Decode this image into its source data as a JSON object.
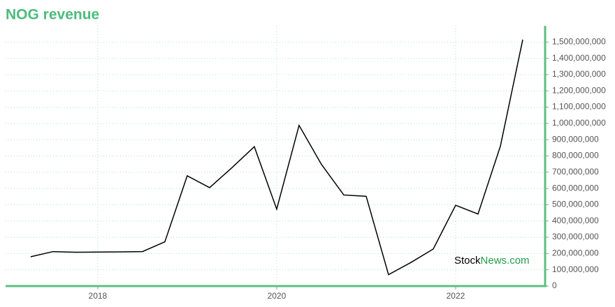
{
  "chart_data": {
    "type": "line",
    "title": "NOG revenue",
    "x": [
      2017.25,
      2017.5,
      2017.75,
      2018.0,
      2018.25,
      2018.5,
      2018.75,
      2019.0,
      2019.25,
      2019.5,
      2019.75,
      2020.0,
      2020.25,
      2020.5,
      2020.75,
      2021.0,
      2021.25,
      2021.5,
      2021.75,
      2022.0,
      2022.25,
      2022.5,
      2022.75
    ],
    "series": [
      {
        "name": "NOG revenue",
        "color": "#000000",
        "values": [
          180000000,
          212000000,
          208000000,
          209000000,
          210000000,
          212000000,
          272000000,
          678000000,
          605000000,
          728000000,
          857000000,
          473000000,
          988000000,
          748000000,
          560000000,
          552000000,
          70000000,
          145000000,
          228000000,
          497000000,
          443000000,
          860000000,
          1515000000
        ]
      }
    ],
    "xlim": [
      2016.97,
      2023.0
    ],
    "xticks": [
      2018,
      2020,
      2022
    ],
    "ylim": [
      0,
      1600000000
    ],
    "yticks": [
      0,
      {
        "value": 100000000,
        "label": "100,000,000"
      },
      {
        "value": 200000000,
        "label": "200,000,000"
      },
      {
        "value": 300000000,
        "label": "300,000,000"
      },
      {
        "value": 400000000,
        "label": "400,000,000"
      },
      {
        "value": 500000000,
        "label": "500,000,000"
      },
      {
        "value": 600000000,
        "label": "600,000,000"
      },
      {
        "value": 700000000,
        "label": "700,000,000"
      },
      {
        "value": 800000000,
        "label": "800,000,000"
      },
      {
        "value": 900000000,
        "label": "900,000,000"
      },
      {
        "value": 1000000000,
        "label": "1,000,000,000"
      },
      {
        "value": 1100000000,
        "label": "1,100,000,000"
      },
      {
        "value": 1200000000,
        "label": "1,200,000,000"
      },
      {
        "value": 1300000000,
        "label": "1,300,000,000"
      },
      {
        "value": 1400000000,
        "label": "1,400,000,000"
      },
      {
        "value": 1500000000,
        "label": "1,500,000,000"
      }
    ],
    "grid": true,
    "axis_color": "#5cbf7f",
    "title_color": "#4dbb7d",
    "watermark": [
      "Stock",
      "News.com"
    ],
    "watermark_color": "#1f9e4a"
  }
}
